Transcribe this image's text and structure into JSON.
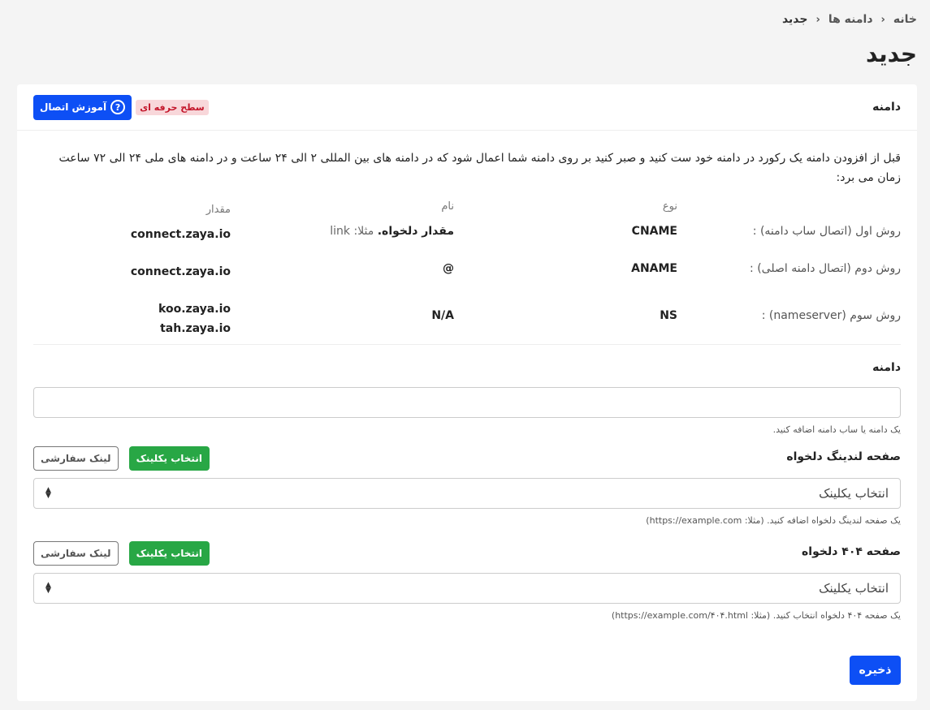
{
  "breadcrumb": [
    "خانه",
    "دامنه ها",
    "جدید"
  ],
  "page_title": "جدید",
  "card": {
    "title": "دامنه",
    "badge": "سطح حرفه ای",
    "tutorial_button": "آموزش اتصال",
    "intro": "قبل از افزودن دامنه یک رکورد در دامنه خود ست کنید و صبر کنید بر روی دامنه شما اعمال شود که در دامنه های بین المللی ۲ الی ۲۴ ساعت و در دامنه های ملی ۲۴ الی ۷۲ ساعت زمان می برد:",
    "table": {
      "headers": [
        "",
        "نوع",
        "نام",
        "مقدار"
      ],
      "rows": [
        {
          "label": "روش اول (اتصال ساب دامنه) :",
          "type": "CNAME",
          "name": "مقدار دلخواه.",
          "name_hint": "مثلا: link",
          "value": [
            "connect.zaya.io"
          ]
        },
        {
          "label": "روش دوم (اتصال دامنه اصلی) :",
          "type": "ANAME",
          "name": "@",
          "name_hint": "",
          "value": [
            "connect.zaya.io"
          ]
        },
        {
          "label": "روش سوم (nameserver) :",
          "type": "NS",
          "name": "N/A",
          "name_hint": "",
          "value": [
            "koo.zaya.io",
            "tah.zaya.io"
          ]
        }
      ]
    },
    "domain": {
      "label": "دامنه",
      "value": "",
      "help": "یک دامنه یا ساب دامنه اضافه کنید."
    },
    "landing": {
      "label": "صفحه لندینگ دلخواه",
      "pick_button": "انتخاب یکلینک",
      "custom_button": "لینک سفارشی",
      "selected": "انتخاب یکلینک",
      "help": "یک صفحه لندینگ دلخواه اضافه کنید. (مثلا: https://example.com)"
    },
    "notfound": {
      "label": "صفحه ۴۰۴ دلخواه",
      "pick_button": "انتخاب یکلینک",
      "custom_button": "لینک سفارشی",
      "selected": "انتخاب یکلینک",
      "help": "یک صفحه ۴۰۴ دلخواه انتخاب کنید. (مثلا: https://example.com/۴۰۴.html)"
    },
    "save_button": "ذخیره"
  },
  "colors": {
    "primary": "#0d4ff5",
    "success": "#28a745",
    "badge_bg": "#f8d7da",
    "badge_text": "#c3162b"
  }
}
